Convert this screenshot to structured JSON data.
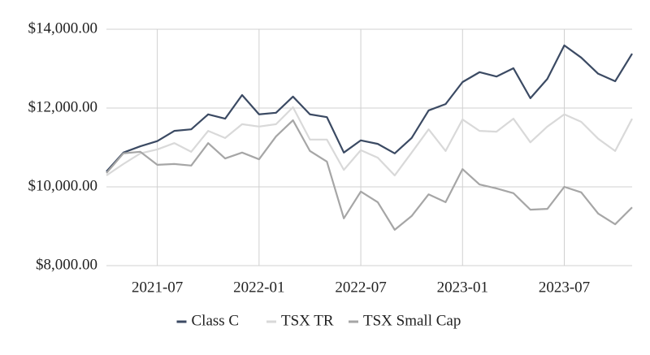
{
  "chart_data": {
    "type": "line",
    "x": [
      "2021-04",
      "2021-05",
      "2021-06",
      "2021-07",
      "2021-08",
      "2021-09",
      "2021-10",
      "2021-11",
      "2021-12",
      "2022-01",
      "2022-02",
      "2022-03",
      "2022-04",
      "2022-05",
      "2022-06",
      "2022-07",
      "2022-08",
      "2022-09",
      "2022-10",
      "2022-11",
      "2022-12",
      "2023-01",
      "2023-02",
      "2023-03",
      "2023-04",
      "2023-05",
      "2023-06",
      "2023-07",
      "2023-08",
      "2023-09",
      "2023-10",
      "2023-11"
    ],
    "xticks": [
      "2021-07",
      "2022-01",
      "2022-07",
      "2023-01",
      "2023-07"
    ],
    "ylim": [
      8000,
      14000
    ],
    "yticks": [
      {
        "value": 8000,
        "label": "$8,000.00"
      },
      {
        "value": 10000,
        "label": "$10,000.00"
      },
      {
        "value": 12000,
        "label": "$12,000.00"
      },
      {
        "value": 14000,
        "label": "$14,000.00"
      }
    ],
    "grid": true,
    "legend": "bottom",
    "series": [
      {
        "name": "Class C",
        "color": "#3b4a63",
        "values": [
          10390,
          10870,
          11030,
          11160,
          11420,
          11460,
          11840,
          11730,
          12330,
          11840,
          11880,
          12290,
          11840,
          11770,
          10870,
          11180,
          11090,
          10850,
          11240,
          11940,
          12100,
          12660,
          12910,
          12800,
          13010,
          12250,
          12740,
          13590,
          13280,
          12870,
          12680,
          13380
        ]
      },
      {
        "name": "TSX TR",
        "color": "#d9d9d9",
        "values": [
          10290,
          10580,
          10850,
          10950,
          11110,
          10890,
          11420,
          11240,
          11590,
          11530,
          11590,
          12020,
          11200,
          11200,
          10430,
          10930,
          10740,
          10290,
          10870,
          11460,
          10910,
          11710,
          11420,
          11400,
          11730,
          11130,
          11530,
          11840,
          11650,
          11220,
          10910,
          11730
        ]
      },
      {
        "name": "TSX Small Cap",
        "color": "#a6a6a6",
        "values": [
          10350,
          10850,
          10890,
          10560,
          10580,
          10540,
          11110,
          10720,
          10870,
          10700,
          11280,
          11690,
          10910,
          10640,
          9200,
          9880,
          9610,
          8910,
          9260,
          9810,
          9610,
          10450,
          10060,
          9960,
          9840,
          9420,
          9440,
          10000,
          9860,
          9320,
          9050,
          9480
        ]
      }
    ]
  }
}
